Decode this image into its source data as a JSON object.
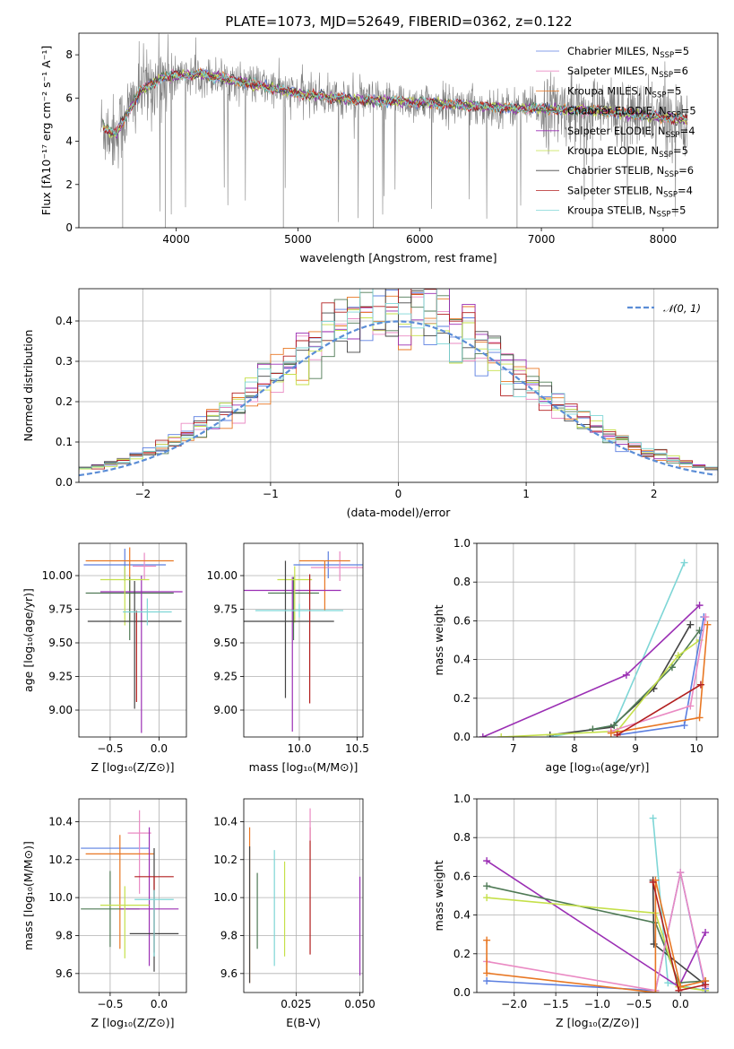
{
  "figure_title": "PLATE=1073, MJD=52649, FIBERID=0362, z=0.122",
  "models": [
    {
      "label": "Chabrier MILES, N",
      "sub": "SSP",
      "suffix": "=5",
      "color": "#5b7fe0"
    },
    {
      "label": "Salpeter MILES, N",
      "sub": "SSP",
      "suffix": "=6",
      "color": "#ea8ac3"
    },
    {
      "label": "Kroupa MILES, N",
      "sub": "SSP",
      "suffix": "=5",
      "color": "#e87723"
    },
    {
      "label": "Chabrier ELODIE, N",
      "sub": "SSP",
      "suffix": "=5",
      "color": "#4f7a55"
    },
    {
      "label": "Salpeter ELODIE, N",
      "sub": "SSP",
      "suffix": "=4",
      "color": "#9b2fb4"
    },
    {
      "label": "Kroupa ELODIE, N",
      "sub": "SSP",
      "suffix": "=5",
      "color": "#c5e04a"
    },
    {
      "label": "Chabrier STELIB, N",
      "sub": "SSP",
      "suffix": "=6",
      "color": "#444444"
    },
    {
      "label": "Salpeter STELIB, N",
      "sub": "SSP",
      "suffix": "=4",
      "color": "#b21f1f"
    },
    {
      "label": "Kroupa STELIB, N",
      "sub": "SSP",
      "suffix": "=5",
      "color": "#7ed6d6"
    }
  ],
  "chart_data": [
    {
      "id": "spectrum",
      "type": "line",
      "xlabel": "wavelength [Angstrom, rest frame]",
      "ylabel": "Flux [fλ10⁻¹⁷ erg cm⁻² s⁻¹ A⁻¹]",
      "xlim": [
        3200,
        8450
      ],
      "ylim": [
        0,
        9
      ],
      "xticks": [
        4000,
        5000,
        6000,
        7000,
        8000
      ],
      "yticks": [
        0,
        2,
        4,
        6,
        8
      ],
      "data_range": [
        3380,
        8200
      ],
      "continuum_knots": {
        "x": [
          3380,
          3500,
          3700,
          3900,
          4200,
          4500,
          5000,
          5500,
          6000,
          6500,
          7000,
          7500,
          8000,
          8200
        ],
        "y": [
          4.7,
          4.3,
          6.3,
          7.0,
          7.1,
          6.8,
          6.2,
          5.9,
          5.8,
          5.6,
          5.5,
          5.4,
          5.1,
          5.0
        ]
      }
    },
    {
      "id": "residual-histogram",
      "type": "step",
      "xlabel": "(data-model)/error",
      "ylabel": "Normed distribution",
      "xlim": [
        -2.5,
        2.5
      ],
      "ylim": [
        0,
        0.48
      ],
      "xticks": [
        -2,
        -1,
        0,
        1,
        2
      ],
      "yticks": [
        0.0,
        0.1,
        0.2,
        0.3,
        0.4
      ],
      "reference": {
        "label": "𝒩(0, 1)",
        "color": "#5b8dd6"
      }
    },
    {
      "id": "age-vs-Z",
      "type": "errorbar",
      "xlabel": "Z [log₁₀(Z/Z⊙)]",
      "ylabel": "age  [log₁₀(age/yr)]",
      "xlim": [
        -0.82,
        0.28
      ],
      "ylim": [
        8.8,
        10.24
      ],
      "xticks": [
        -0.5,
        0.0
      ],
      "yticks": [
        9.0,
        9.25,
        9.5,
        9.75,
        10.0
      ],
      "points": [
        {
          "x": -0.35,
          "y": 10.08,
          "xerr": 0.42,
          "yerr_lo": 0.12,
          "yerr_hi": 0.12,
          "color": "#5b7fe0"
        },
        {
          "x": -0.15,
          "y": 10.07,
          "xerr": 0.12,
          "yerr_lo": 0.1,
          "yerr_hi": 0.1,
          "color": "#ea8ac3"
        },
        {
          "x": -0.3,
          "y": 10.11,
          "xerr": 0.45,
          "yerr_lo": 0.45,
          "yerr_hi": 0.1,
          "color": "#e87723"
        },
        {
          "x": -0.3,
          "y": 9.87,
          "xerr": 0.45,
          "yerr_lo": 0.35,
          "yerr_hi": 0.12,
          "color": "#4f7a55"
        },
        {
          "x": -0.18,
          "y": 9.88,
          "xerr": 0.42,
          "yerr_lo": 1.05,
          "yerr_hi": 0.12,
          "color": "#9b2fb4"
        },
        {
          "x": -0.35,
          "y": 9.97,
          "xerr": 0.25,
          "yerr_lo": 0.34,
          "yerr_hi": 0.1,
          "color": "#c5e04a"
        },
        {
          "x": -0.25,
          "y": 9.66,
          "xerr": 0.48,
          "yerr_lo": 0.65,
          "yerr_hi": 0.3,
          "color": "#444444"
        },
        {
          "x": -0.23,
          "y": 9.72,
          "xerr": 0.0,
          "yerr_lo": 0.66,
          "yerr_hi": 0.02,
          "color": "#b21f1f"
        },
        {
          "x": -0.12,
          "y": 9.73,
          "xerr": 0.25,
          "yerr_lo": 0.1,
          "yerr_hi": 0.1,
          "color": "#7ed6d6"
        }
      ]
    },
    {
      "id": "age-vs-mass",
      "type": "errorbar",
      "xlabel": "mass [log₁₀(M/M⊙)]",
      "ylabel": "",
      "xlim": [
        9.52,
        10.55
      ],
      "ylim": [
        8.8,
        10.24
      ],
      "xticks": [
        10.0,
        10.5
      ],
      "yticks": [
        9.0,
        9.25,
        9.5,
        9.75,
        10.0
      ],
      "points": [
        {
          "x": 10.25,
          "y": 10.08,
          "xerr": 0.3,
          "yerr_lo": 0.1,
          "yerr_hi": 0.1,
          "color": "#5b7fe0"
        },
        {
          "x": 10.35,
          "y": 10.06,
          "xerr": 0.25,
          "yerr_lo": 0.1,
          "yerr_hi": 0.12,
          "color": "#ea8ac3"
        },
        {
          "x": 10.22,
          "y": 10.11,
          "xerr": 0.22,
          "yerr_lo": 0.37,
          "yerr_hi": 0.0,
          "color": "#e87723"
        },
        {
          "x": 9.95,
          "y": 9.87,
          "xerr": 0.22,
          "yerr_lo": 0.35,
          "yerr_hi": 0.12,
          "color": "#4f7a55"
        },
        {
          "x": 9.94,
          "y": 9.89,
          "xerr": 0.42,
          "yerr_lo": 1.05,
          "yerr_hi": 0.1,
          "color": "#9b2fb4"
        },
        {
          "x": 9.96,
          "y": 9.97,
          "xerr": 0.15,
          "yerr_lo": 0.32,
          "yerr_hi": 0.1,
          "color": "#c5e04a"
        },
        {
          "x": 9.88,
          "y": 9.66,
          "xerr": 0.42,
          "yerr_lo": 0.57,
          "yerr_hi": 0.45,
          "color": "#444444"
        },
        {
          "x": 10.09,
          "y": 9.71,
          "xerr": 0.0,
          "yerr_lo": 0.66,
          "yerr_hi": 0.3,
          "color": "#b21f1f"
        },
        {
          "x": 10.0,
          "y": 9.74,
          "xerr": 0.38,
          "yerr_lo": 0.05,
          "yerr_hi": 0.05,
          "color": "#7ed6d6"
        }
      ]
    },
    {
      "id": "weight-vs-age",
      "type": "line",
      "xlabel": "age  [log₁₀(age/yr)]",
      "ylabel": "mass weight",
      "xlim": [
        6.4,
        10.35
      ],
      "ylim": [
        0,
        1.0
      ],
      "xticks": [
        7,
        8,
        9,
        10
      ],
      "yticks": [
        0.0,
        0.2,
        0.4,
        0.6,
        0.8,
        1.0
      ],
      "series": [
        {
          "color": "#7ed6d6",
          "points": [
            [
              7.6,
              0.0
            ],
            [
              8.65,
              0.06
            ],
            [
              9.8,
              0.9
            ]
          ]
        },
        {
          "color": "#9b2fb4",
          "points": [
            [
              6.5,
              0.0
            ],
            [
              8.85,
              0.32
            ],
            [
              10.05,
              0.68
            ]
          ]
        },
        {
          "color": "#444444",
          "points": [
            [
              7.6,
              0.01
            ],
            [
              8.6,
              0.05
            ],
            [
              9.3,
              0.25
            ],
            [
              9.9,
              0.58
            ]
          ]
        },
        {
          "color": "#4f7a55",
          "points": [
            [
              8.3,
              0.04
            ],
            [
              8.65,
              0.06
            ],
            [
              9.6,
              0.36
            ],
            [
              10.05,
              0.55
            ]
          ]
        },
        {
          "color": "#c5e04a",
          "points": [
            [
              6.8,
              0.0
            ],
            [
              8.7,
              0.03
            ],
            [
              9.7,
              0.42
            ],
            [
              10.05,
              0.5
            ]
          ]
        },
        {
          "color": "#5b7fe0",
          "points": [
            [
              8.7,
              0.01
            ],
            [
              9.8,
              0.06
            ],
            [
              10.12,
              0.62
            ]
          ]
        },
        {
          "color": "#ea8ac3",
          "points": [
            [
              8.6,
              0.03
            ],
            [
              9.9,
              0.16
            ],
            [
              10.15,
              0.62
            ]
          ]
        },
        {
          "color": "#e87723",
          "points": [
            [
              8.6,
              0.02
            ],
            [
              10.05,
              0.1
            ],
            [
              10.18,
              0.58
            ]
          ]
        },
        {
          "color": "#b21f1f",
          "points": [
            [
              8.7,
              0.01
            ],
            [
              10.07,
              0.27
            ]
          ]
        }
      ]
    },
    {
      "id": "mass-vs-Z",
      "type": "errorbar",
      "xlabel": "Z [log₁₀(Z/Z⊙)]",
      "ylabel": "mass [log₁₀(M/M⊙)]",
      "xlim": [
        -0.82,
        0.28
      ],
      "ylim": [
        9.5,
        10.52
      ],
      "xticks": [
        -0.5,
        0.0
      ],
      "yticks": [
        9.6,
        9.8,
        10.0,
        10.2,
        10.4
      ],
      "points": [
        {
          "x": -0.45,
          "y": 10.26,
          "xerr": 0.35,
          "yerr_lo": 0.0,
          "yerr_hi": 0.0,
          "color": "#5b7fe0"
        },
        {
          "x": -0.2,
          "y": 10.34,
          "xerr": 0.12,
          "yerr_lo": 0.32,
          "yerr_hi": 0.12,
          "color": "#ea8ac3"
        },
        {
          "x": -0.4,
          "y": 10.23,
          "xerr": 0.35,
          "yerr_lo": 0.5,
          "yerr_hi": 0.1,
          "color": "#e87723"
        },
        {
          "x": -0.5,
          "y": 9.94,
          "xerr": 0.3,
          "yerr_lo": 0.2,
          "yerr_hi": 0.2,
          "color": "#4f7a55"
        },
        {
          "x": -0.1,
          "y": 9.94,
          "xerr": 0.3,
          "yerr_lo": 0.3,
          "yerr_hi": 0.43,
          "color": "#9b2fb4"
        },
        {
          "x": -0.35,
          "y": 9.96,
          "xerr": 0.25,
          "yerr_lo": 0.28,
          "yerr_hi": 0.1,
          "color": "#c5e04a"
        },
        {
          "x": -0.05,
          "y": 9.81,
          "xerr": 0.25,
          "yerr_lo": 0.2,
          "yerr_hi": 0.45,
          "color": "#444444"
        },
        {
          "x": -0.05,
          "y": 10.11,
          "xerr": 0.2,
          "yerr_lo": 0.4,
          "yerr_hi": 0.0,
          "color": "#b21f1f"
        },
        {
          "x": -0.05,
          "y": 9.99,
          "xerr": 0.2,
          "yerr_lo": 0.3,
          "yerr_hi": 0.05,
          "color": "#7ed6d6"
        }
      ]
    },
    {
      "id": "mass-vs-ebv",
      "type": "errorbar",
      "xlabel": "E(B-V)",
      "ylabel": "",
      "xlim": [
        0.0045,
        0.0512
      ],
      "ylim": [
        9.5,
        10.52
      ],
      "xticks": [
        0.025,
        0.05
      ],
      "yticks": [
        9.6,
        9.8,
        10.0,
        10.2,
        10.4
      ],
      "points": [
        {
          "x": 0.0068,
          "y": 9.95,
          "xerr": 0.0,
          "yerr_lo": 0.4,
          "yerr_hi": 0.42,
          "color": "#e87723"
        },
        {
          "x": 0.0068,
          "y": 9.97,
          "xerr": 0.0,
          "yerr_lo": 0.42,
          "yerr_hi": 0.3,
          "color": "#444444"
        },
        {
          "x": 0.0098,
          "y": 9.93,
          "xerr": 0.0,
          "yerr_lo": 0.2,
          "yerr_hi": 0.2,
          "color": "#4f7a55"
        },
        {
          "x": 0.0165,
          "y": 9.94,
          "xerr": 0.0,
          "yerr_lo": 0.3,
          "yerr_hi": 0.31,
          "color": "#7ed6d6"
        },
        {
          "x": 0.0205,
          "y": 9.97,
          "xerr": 0.0,
          "yerr_lo": 0.28,
          "yerr_hi": 0.22,
          "color": "#c5e04a"
        },
        {
          "x": 0.0305,
          "y": 10.07,
          "xerr": 0.0,
          "yerr_lo": 0.37,
          "yerr_hi": 0.3,
          "color": "#b21f1f"
        },
        {
          "x": 0.0305,
          "y": 10.3,
          "xerr": 0.0,
          "yerr_lo": 0.0,
          "yerr_hi": 0.17,
          "color": "#ea8ac3"
        },
        {
          "x": 0.05,
          "y": 9.84,
          "xerr": 0.0,
          "yerr_lo": 0.25,
          "yerr_hi": 0.27,
          "color": "#9b2fb4"
        }
      ]
    },
    {
      "id": "weight-vs-Z",
      "type": "line",
      "xlabel": "Z [log₁₀(Z/Z⊙)]",
      "ylabel": "mass weight",
      "xlim": [
        -2.45,
        0.45
      ],
      "ylim": [
        0,
        1.0
      ],
      "xticks": [
        -2.0,
        -1.5,
        -1.0,
        -0.5,
        0.0
      ],
      "yticks": [
        0.0,
        0.2,
        0.4,
        0.6,
        0.8,
        1.0
      ],
      "series": [
        {
          "color": "#7ed6d6",
          "points": [
            [
              -0.33,
              0.9
            ],
            [
              -0.15,
              0.05
            ],
            [
              0.3,
              0.01
            ]
          ]
        },
        {
          "color": "#9b2fb4",
          "points": [
            [
              -2.33,
              0.68
            ],
            [
              -0.02,
              0.03
            ],
            [
              0.3,
              0.31
            ]
          ]
        },
        {
          "color": "#444444",
          "points": [
            [
              -0.33,
              0.58
            ],
            [
              -0.32,
              0.25
            ],
            [
              0.3,
              0.04
            ]
          ]
        },
        {
          "color": "#4f7a55",
          "points": [
            [
              -2.33,
              0.55
            ],
            [
              -0.3,
              0.36
            ],
            [
              -0.02,
              0.05
            ],
            [
              0.3,
              0.06
            ]
          ]
        },
        {
          "color": "#c5e04a",
          "points": [
            [
              -2.33,
              0.49
            ],
            [
              -0.3,
              0.41
            ],
            [
              -0.02,
              0.03
            ],
            [
              0.3,
              0.01
            ]
          ]
        },
        {
          "color": "#5b7fe0",
          "points": [
            [
              -2.33,
              0.06
            ],
            [
              -0.3,
              0.01
            ],
            [
              0.0,
              0.62
            ],
            [
              0.3,
              0.02
            ]
          ]
        },
        {
          "color": "#ea8ac3",
          "points": [
            [
              -2.33,
              0.16
            ],
            [
              -0.3,
              0.01
            ],
            [
              0.0,
              0.62
            ],
            [
              0.3,
              0.03
            ]
          ]
        },
        {
          "color": "#e87723",
          "points": [
            [
              -2.33,
              0.27
            ],
            [
              -2.33,
              0.1
            ],
            [
              -0.3,
              0.0
            ],
            [
              -0.3,
              0.58
            ],
            [
              0.0,
              0.03
            ],
            [
              0.3,
              0.06
            ]
          ]
        },
        {
          "color": "#b21f1f",
          "points": [
            [
              -0.33,
              0.57
            ],
            [
              -0.02,
              0.01
            ],
            [
              0.3,
              0.04
            ]
          ]
        }
      ]
    }
  ]
}
